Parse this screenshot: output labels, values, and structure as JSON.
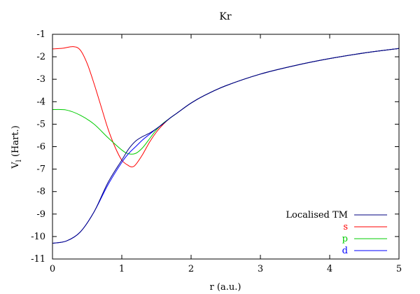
{
  "chart_data": {
    "type": "line",
    "title": "Kr",
    "xlabel": "r (a.u.)",
    "ylabel_main": "V",
    "ylabel_sub": "l",
    "ylabel_suffix": " (Hart.)",
    "xlim": [
      0,
      5
    ],
    "ylim": [
      -11,
      -1
    ],
    "xticks": [
      0,
      1,
      2,
      3,
      4,
      5
    ],
    "yticks": [
      -11,
      -10,
      -9,
      -8,
      -7,
      -6,
      -5,
      -4,
      -3,
      -2,
      -1
    ],
    "grid": false,
    "legend_position": "bottom-right",
    "series": [
      {
        "name": "Localised TM",
        "color": "#000080",
        "x": [
          0,
          0.2,
          0.4,
          0.6,
          0.8,
          1.0,
          1.1,
          1.2,
          1.3,
          1.4,
          1.5,
          1.6,
          1.7,
          1.8,
          2.0,
          2.2,
          2.5,
          3.0,
          3.5,
          4.0,
          4.5,
          5.0
        ],
        "y": [
          -10.3,
          -10.2,
          -9.8,
          -8.9,
          -7.6,
          -6.6,
          -6.1,
          -5.75,
          -5.55,
          -5.4,
          -5.2,
          -4.97,
          -4.72,
          -4.5,
          -4.06,
          -3.71,
          -3.29,
          -2.77,
          -2.39,
          -2.08,
          -1.83,
          -1.63
        ]
      },
      {
        "name": "s",
        "color": "#ff0000",
        "x": [
          0,
          0.15,
          0.3,
          0.4,
          0.5,
          0.6,
          0.7,
          0.8,
          0.9,
          1.0,
          1.1,
          1.15,
          1.2,
          1.3,
          1.4,
          1.5,
          1.6,
          1.7,
          1.8,
          2.0,
          2.2,
          2.5,
          3.0,
          3.5,
          4.0,
          4.5,
          5.0
        ],
        "y": [
          -1.65,
          -1.62,
          -1.55,
          -1.7,
          -2.3,
          -3.2,
          -4.2,
          -5.2,
          -6.0,
          -6.6,
          -6.85,
          -6.9,
          -6.8,
          -6.35,
          -5.8,
          -5.35,
          -5.0,
          -4.72,
          -4.5,
          -4.06,
          -3.71,
          -3.29,
          -2.77,
          -2.39,
          -2.08,
          -1.83,
          -1.63
        ]
      },
      {
        "name": "p",
        "color": "#00cc00",
        "x": [
          0,
          0.2,
          0.4,
          0.6,
          0.8,
          1.0,
          1.1,
          1.2,
          1.3,
          1.4,
          1.5,
          1.6,
          1.7,
          1.8,
          2.0,
          2.2,
          2.5,
          3.0,
          3.5,
          4.0,
          4.5,
          5.0
        ],
        "y": [
          -4.35,
          -4.37,
          -4.6,
          -5.0,
          -5.6,
          -6.15,
          -6.32,
          -6.3,
          -6.05,
          -5.65,
          -5.25,
          -4.95,
          -4.72,
          -4.5,
          -4.06,
          -3.71,
          -3.29,
          -2.77,
          -2.39,
          -2.08,
          -1.83,
          -1.63
        ]
      },
      {
        "name": "d",
        "color": "#0000ff",
        "x": [
          0,
          0.2,
          0.4,
          0.6,
          0.8,
          1.0,
          1.1,
          1.2,
          1.3,
          1.4,
          1.5,
          1.6,
          1.7,
          1.8,
          2.0,
          2.2,
          2.5,
          3.0,
          3.5,
          4.0,
          4.5,
          5.0
        ],
        "y": [
          -10.3,
          -10.2,
          -9.8,
          -8.9,
          -7.7,
          -6.7,
          -6.3,
          -6.0,
          -5.7,
          -5.45,
          -5.2,
          -4.97,
          -4.72,
          -4.5,
          -4.06,
          -3.71,
          -3.29,
          -2.77,
          -2.39,
          -2.08,
          -1.83,
          -1.63
        ]
      }
    ]
  }
}
